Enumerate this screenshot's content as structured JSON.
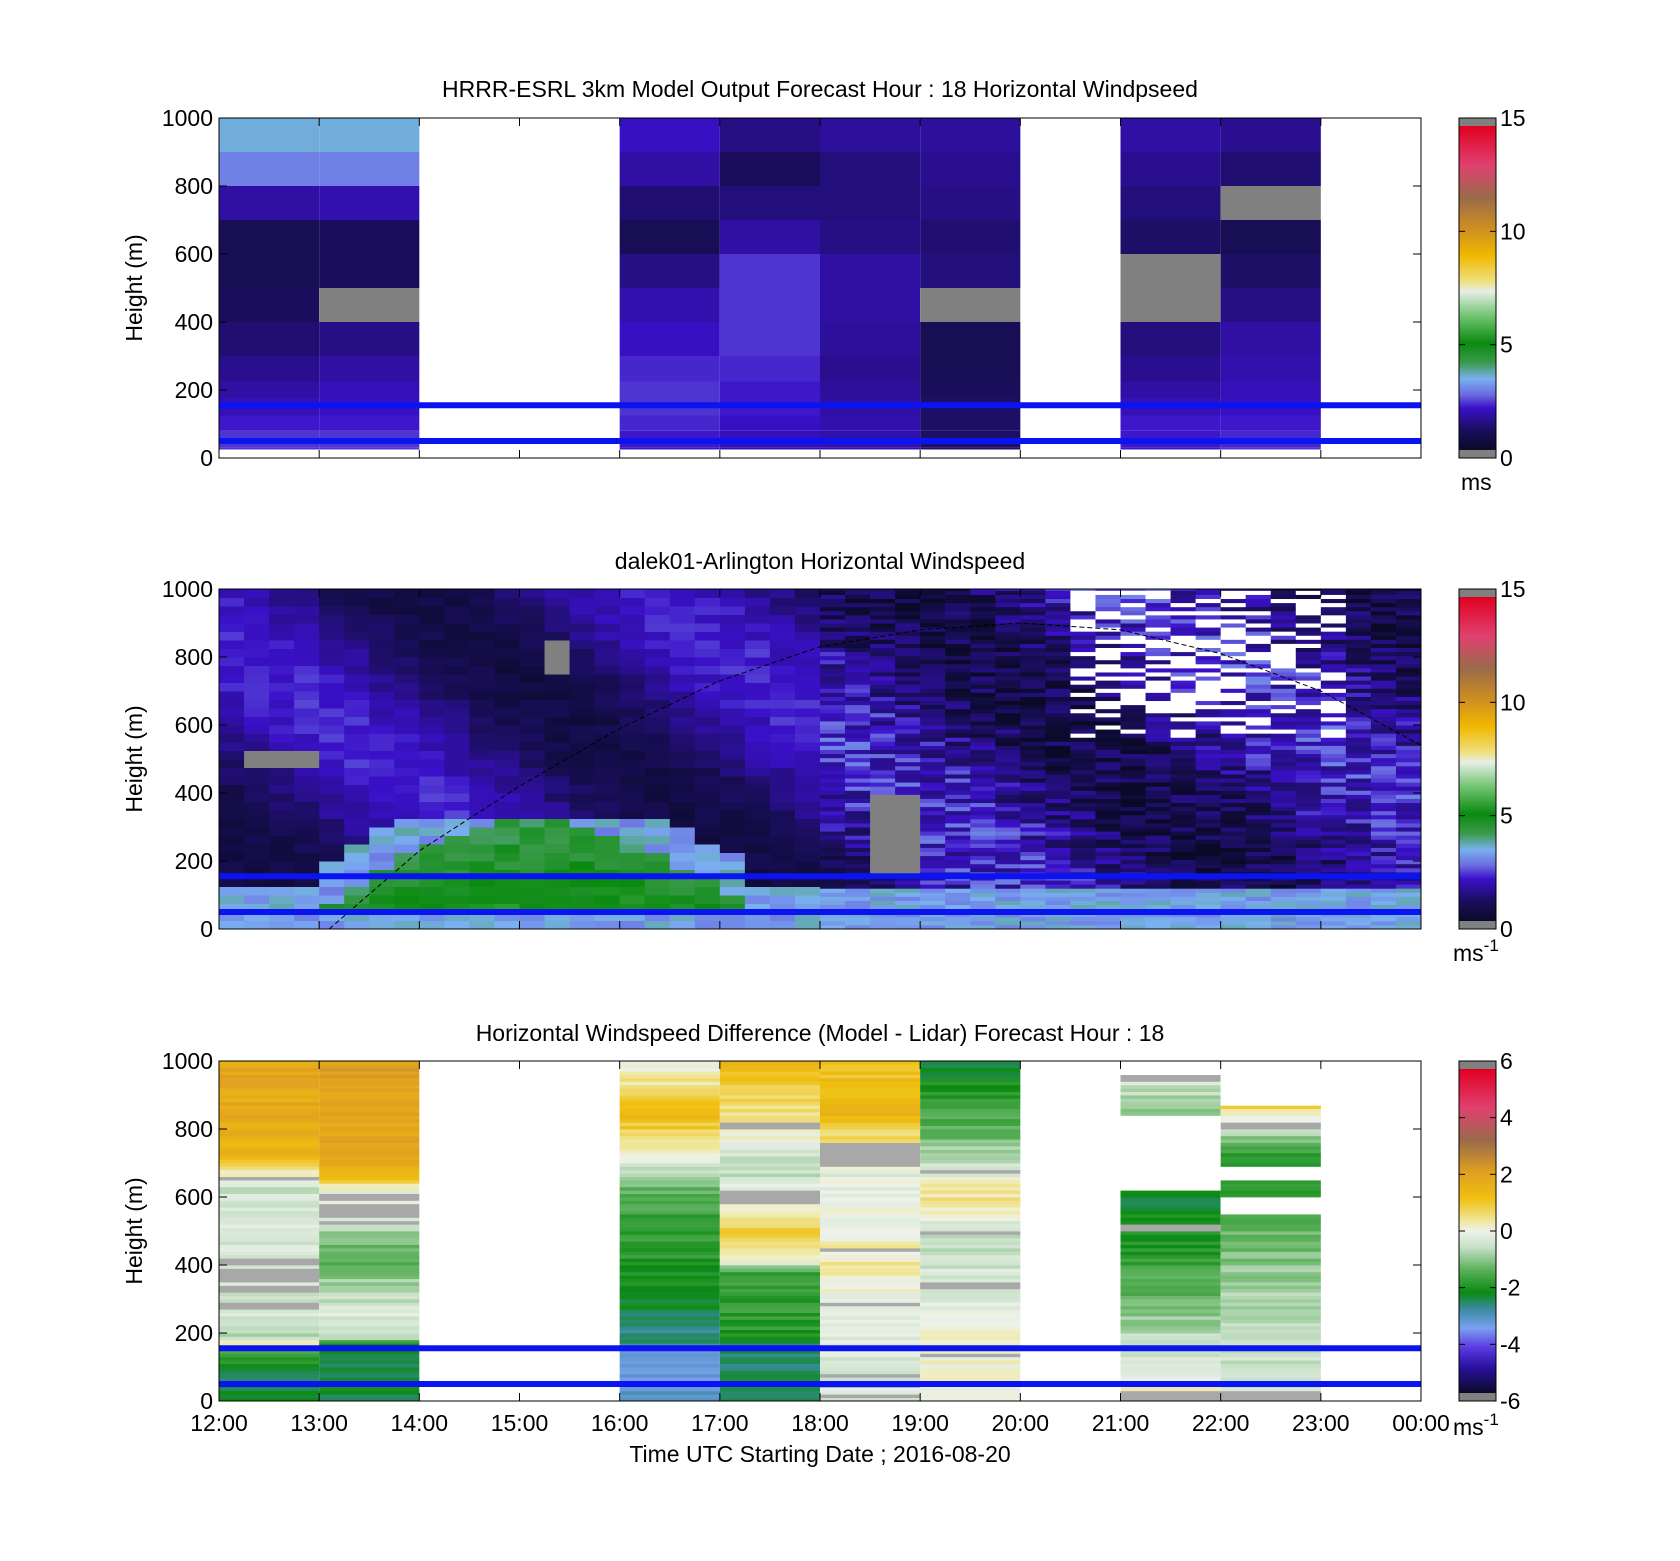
{
  "chart_data": [
    {
      "type": "heatmap",
      "title": "HRRR-ESRL 3km Model Output   Forecast Hour : 18 Horizontal Windpseed",
      "ylabel": "Height (m)",
      "xlabel": "",
      "xlim": [
        12,
        24
      ],
      "ylim": [
        0,
        1000
      ],
      "yticks": [
        0,
        200,
        400,
        600,
        800,
        1000
      ],
      "xticks": [
        12,
        13,
        14,
        15,
        16,
        17,
        18,
        19,
        20,
        21,
        22,
        23,
        24
      ],
      "colorbar": {
        "min": 0,
        "max": 15,
        "ticks": [
          "0",
          "5",
          "10",
          "15"
        ],
        "unit": "ms",
        "unit_sup": ""
      },
      "colormap": "speed",
      "reference_lines": {
        "heights": [
          50,
          155
        ],
        "color": "#0a14f0"
      },
      "layers": [
        0,
        30,
        80,
        125,
        175,
        225,
        300,
        400,
        500,
        600,
        700,
        800,
        900,
        1000
      ],
      "columns": [
        {
          "x0": 12,
          "x1": 13,
          "values": [
            2.2,
            2.2,
            2.0,
            1.8,
            1.6,
            1.4,
            1.1,
            0.9,
            0.8,
            0.8,
            1.6,
            2.8,
            3.4,
            3.6
          ]
        },
        {
          "x0": 13,
          "x1": 14,
          "values": [
            2.2,
            2.2,
            2.0,
            1.9,
            1.8,
            1.6,
            1.3,
            null,
            0.9,
            0.9,
            1.7,
            2.8,
            3.4,
            3.7
          ]
        },
        {
          "x0": 16,
          "x1": 17,
          "values": [
            2.0,
            2.0,
            2.1,
            2.2,
            2.2,
            2.1,
            1.9,
            1.7,
            1.3,
            0.8,
            1.1,
            1.6,
            1.9,
            2.0
          ]
        },
        {
          "x0": 17,
          "x1": 18,
          "values": [
            1.8,
            1.8,
            1.9,
            2.0,
            2.0,
            2.1,
            2.2,
            2.2,
            2.2,
            1.6,
            1.2,
            0.9,
            1.3,
            1.9
          ]
        },
        {
          "x0": 18,
          "x1": 19,
          "values": [
            1.8,
            1.7,
            1.7,
            1.6,
            1.5,
            1.4,
            1.5,
            1.6,
            1.6,
            1.3,
            1.2,
            1.2,
            1.5,
            1.8
          ]
        },
        {
          "x0": 19,
          "x1": 20,
          "values": [
            1.0,
            1.0,
            1.0,
            1.0,
            0.9,
            0.8,
            0.8,
            null,
            1.2,
            1.1,
            1.3,
            1.4,
            1.5,
            1.6
          ]
        },
        {
          "x0": 21,
          "x1": 22,
          "values": [
            2.0,
            2.0,
            2.0,
            1.8,
            1.6,
            1.4,
            1.2,
            null,
            null,
            1.0,
            1.2,
            1.4,
            1.6,
            1.8
          ]
        },
        {
          "x0": 22,
          "x1": 23,
          "values": [
            2.2,
            2.1,
            2.0,
            1.9,
            1.8,
            1.7,
            1.6,
            1.3,
            1.0,
            0.8,
            null,
            1.1,
            1.4,
            1.7
          ]
        }
      ]
    },
    {
      "type": "heatmap",
      "title": "dalek01-Arlington  Horizontal Windspeed",
      "ylabel": "Height (m)",
      "xlabel": "",
      "xlim": [
        12,
        24
      ],
      "ylim": [
        0,
        1000
      ],
      "yticks": [
        0,
        200,
        400,
        600,
        800,
        1000
      ],
      "xticks": [
        12,
        13,
        14,
        15,
        16,
        17,
        18,
        19,
        20,
        21,
        22,
        23,
        24
      ],
      "colorbar": {
        "min": 0,
        "max": 15,
        "ticks": [
          "0",
          "5",
          "10",
          "15"
        ],
        "unit": "ms",
        "unit_sup": "-1"
      },
      "colormap": "speed",
      "reference_lines": {
        "heights": [
          50,
          155
        ],
        "color": "#0a14f0"
      },
      "curve": {
        "description": "dashed curve",
        "x": [
          13.1,
          14,
          15,
          16,
          17,
          18,
          19,
          20,
          21,
          22,
          23,
          24
        ],
        "y": [
          0,
          230,
          420,
          590,
          730,
          830,
          880,
          900,
          880,
          810,
          700,
          540
        ]
      },
      "regions": [
        {
          "name": "low-level green jet",
          "x": [
            13,
            17.3
          ],
          "y": [
            60,
            320
          ],
          "value": 5.3
        },
        {
          "name": "missing patch",
          "x": [
            15.2,
            15.5
          ],
          "y": [
            740,
            840
          ],
          "value": null
        },
        {
          "name": "missing patch",
          "x": [
            12.3,
            12.9
          ],
          "y": [
            470,
            520
          ],
          "value": null
        },
        {
          "name": "missing patch",
          "x": [
            18.6,
            19.1
          ],
          "y": [
            160,
            390
          ],
          "value": null
        },
        {
          "name": "missing upper gates",
          "x": [
            20.6,
            23.3
          ],
          "y": [
            560,
            1000
          ],
          "value": null
        }
      ]
    },
    {
      "type": "heatmap",
      "title": "Horizontal Windspeed Difference (Model - Lidar) Forecast Hour : 18",
      "ylabel": "Height (m)",
      "xlabel": "Time UTC  Starting Date ; 2016-08-20",
      "xlim": [
        12,
        24
      ],
      "ylim": [
        0,
        1000
      ],
      "yticks": [
        0,
        200,
        400,
        600,
        800,
        1000
      ],
      "xticks": [
        12,
        13,
        14,
        15,
        16,
        17,
        18,
        19,
        20,
        21,
        22,
        23,
        24
      ],
      "xticklabels": [
        "12:00",
        "13:00",
        "14:00",
        "15:00",
        "16:00",
        "17:00",
        "18:00",
        "19:00",
        "20:00",
        "21:00",
        "22:00",
        "23:00",
        "00:00"
      ],
      "colorbar": {
        "min": -6,
        "max": 6,
        "ticks": [
          "-6",
          "-4",
          "-2",
          "0",
          "2",
          "4",
          "6"
        ],
        "unit": "ms",
        "unit_sup": "-1"
      },
      "colormap": "diff",
      "reference_lines": {
        "heights": [
          50,
          155
        ],
        "color": "#0a14f0"
      },
      "columns": [
        {
          "x0": 12,
          "x1": 13,
          "profile": [
            [
              0,
              -2.3
            ],
            [
              60,
              -2.6
            ],
            [
              150,
              -1.5
            ],
            [
              170,
              0.6
            ],
            [
              190,
              -0.7
            ],
            [
              260,
              -0.4
            ],
            [
              420,
              -0.3
            ],
            [
              640,
              -0.5
            ],
            [
              660,
              0.0
            ],
            [
              720,
              1.5
            ],
            [
              800,
              1.8
            ],
            [
              1000,
              1.9
            ]
          ],
          "gaps": [
            [
              270,
              290
            ],
            [
              320,
              335
            ],
            [
              350,
              390
            ],
            [
              400,
              415
            ],
            [
              650,
              660
            ]
          ]
        },
        {
          "x0": 13,
          "x1": 14,
          "profile": [
            [
              0,
              -2.4
            ],
            [
              160,
              -2.5
            ],
            [
              190,
              -0.5
            ],
            [
              260,
              -0.3
            ],
            [
              420,
              -1.5
            ],
            [
              560,
              -0.3
            ],
            [
              620,
              0.0
            ],
            [
              680,
              1.8
            ],
            [
              1000,
              2.2
            ]
          ],
          "gaps": [
            [
              520,
              530
            ],
            [
              540,
              555
            ],
            [
              565,
              575
            ],
            [
              595,
              605
            ]
          ]
        },
        {
          "x0": 16,
          "x1": 17,
          "profile": [
            [
              0,
              -3.3
            ],
            [
              150,
              -3.4
            ],
            [
              160,
              -2.8
            ],
            [
              230,
              -2.6
            ],
            [
              400,
              -2.0
            ],
            [
              600,
              -1.6
            ],
            [
              700,
              -0.4
            ],
            [
              760,
              0.5
            ],
            [
              860,
              1.5
            ],
            [
              940,
              0.4
            ],
            [
              1000,
              0.0
            ]
          ]
        },
        {
          "x0": 17,
          "x1": 18,
          "profile": [
            [
              0,
              -2.6
            ],
            [
              160,
              -2.6
            ],
            [
              200,
              -2.0
            ],
            [
              380,
              -1.7
            ],
            [
              420,
              0.3
            ],
            [
              500,
              1.0
            ],
            [
              560,
              0.3
            ],
            [
              700,
              -0.8
            ],
            [
              800,
              0.2
            ],
            [
              920,
              0.9
            ],
            [
              1000,
              1.5
            ]
          ],
          "gaps": [
            [
              580,
              620
            ],
            [
              800,
              815
            ]
          ]
        },
        {
          "x0": 18,
          "x1": 19,
          "profile": [
            [
              0,
              -0.3
            ],
            [
              200,
              -0.3
            ],
            [
              400,
              0.3
            ],
            [
              560,
              0.0
            ],
            [
              700,
              -0.2
            ],
            [
              860,
              1.6
            ],
            [
              1000,
              1.0
            ]
          ],
          "gaps": [
            [
              10,
              20
            ],
            [
              40,
              55
            ],
            [
              70,
              80
            ],
            [
              280,
              290
            ],
            [
              440,
              450
            ],
            [
              690,
              760
            ]
          ]
        },
        {
          "x0": 19,
          "x1": 20,
          "profile": [
            [
              0,
              -0.2
            ],
            [
              200,
              0.3
            ],
            [
              300,
              -0.3
            ],
            [
              500,
              -0.6
            ],
            [
              600,
              0.5
            ],
            [
              680,
              -0.3
            ],
            [
              800,
              -1.5
            ],
            [
              1000,
              -2.5
            ]
          ],
          "gaps": [
            [
              50,
              60
            ],
            [
              130,
              140
            ],
            [
              330,
              345
            ],
            [
              490,
              500
            ],
            [
              670,
              680
            ]
          ]
        },
        {
          "x0": 21,
          "x1": 22,
          "profile": [
            [
              0,
              0.4
            ],
            [
              200,
              -0.8
            ],
            [
              400,
              -1.8
            ],
            [
              600,
              -2.5
            ],
            [
              860,
              -1.0
            ],
            [
              960,
              -0.3
            ]
          ],
          "gaps": [
            [
              0,
              30
            ],
            [
              500,
              520
            ],
            [
              620,
              840
            ],
            [
              940,
              960
            ],
            [
              1000,
              1000
            ]
          ]
        },
        {
          "x0": 22,
          "x1": 23,
          "profile": [
            [
              0,
              -0.5
            ],
            [
              200,
              -0.6
            ],
            [
              400,
              -1.0
            ],
            [
              540,
              -1.6
            ],
            [
              700,
              -2.2
            ],
            [
              780,
              -1.0
            ],
            [
              860,
              0.7
            ]
          ],
          "gaps": [
            [
              0,
              25
            ],
            [
              550,
              600
            ],
            [
              650,
              690
            ],
            [
              800,
              820
            ],
            [
              870,
              1000
            ]
          ]
        }
      ]
    }
  ]
}
